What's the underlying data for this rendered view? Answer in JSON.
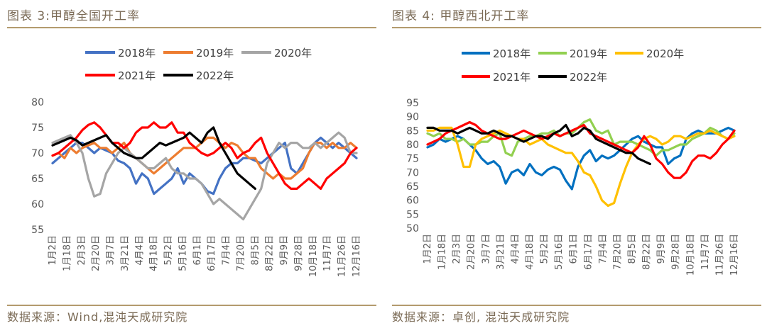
{
  "left_panel": {
    "title": "图表 3:甲醇全国开工率",
    "source": "数据来源：Wind,混沌天成研究院"
  },
  "right_panel": {
    "title": "图表 4: 甲醇西北开工率",
    "source": "数据来源：卓创, 混沌天成研究院"
  },
  "chart_data": [
    {
      "type": "line",
      "title": "",
      "xlabel": "",
      "ylabel": "",
      "ylim": [
        55,
        80
      ],
      "yticks": [
        55,
        60,
        65,
        70,
        75,
        80
      ],
      "grid": false,
      "legend_position": "top",
      "x_tick_labels": [
        "1月2日",
        "1月18日",
        "2月3日",
        "2月20日",
        "3月7日",
        "3月21日",
        "4月4日",
        "4月18日",
        "5月2日",
        "5月16日",
        "6月1日",
        "6月17日",
        "7月4日",
        "7月20日",
        "8月5日",
        "8月22日",
        "9月9日",
        "9月28日",
        "10月18日",
        "11月7日",
        "11月26日",
        "12月16日"
      ],
      "n_points": 52,
      "series": [
        {
          "name": "2018年",
          "color": "#4472c4",
          "values": [
            68,
            69,
            70,
            71,
            72,
            72,
            71,
            70,
            71,
            70.5,
            70,
            68.5,
            68,
            67,
            64,
            66,
            65,
            62,
            63,
            64,
            65,
            67,
            64,
            66,
            65,
            64,
            62.5,
            62,
            65,
            67,
            68,
            68,
            69,
            69,
            68.5,
            68,
            69,
            70,
            71,
            72,
            67,
            66,
            68,
            70,
            72,
            73,
            72,
            71,
            72,
            71,
            70,
            69
          ]
        },
        {
          "name": "2019年",
          "color": "#ed7d31",
          "values": [
            69.5,
            70,
            69,
            71,
            70,
            71,
            71.5,
            72,
            71,
            71,
            70,
            71,
            72,
            70,
            69,
            68,
            67,
            66,
            67,
            68,
            69,
            70,
            71,
            71,
            71,
            72,
            73,
            73,
            72,
            71,
            72,
            71.5,
            70,
            69,
            69,
            67,
            66,
            65,
            66,
            65,
            65,
            66,
            67,
            70,
            72,
            72,
            71,
            72,
            71,
            71,
            72,
            71
          ]
        },
        {
          "name": "2020年",
          "color": "#a5a5a5",
          "values": [
            72,
            72.5,
            73,
            73.5,
            72,
            70,
            65,
            61.5,
            62,
            66,
            68,
            70,
            71,
            70,
            69,
            68,
            67,
            67,
            68,
            69,
            67,
            66,
            66,
            65,
            65,
            64,
            62,
            60,
            61,
            60,
            59,
            58,
            57,
            59,
            61,
            63,
            68,
            70,
            72,
            71,
            72,
            72,
            71,
            71,
            72,
            71,
            72,
            73,
            74,
            73,
            70,
            70
          ]
        },
        {
          "name": "2021年",
          "color": "#ff0000",
          "values": [
            69.5,
            70,
            71,
            72,
            73,
            74.5,
            75.5,
            76,
            75,
            73.5,
            72,
            72,
            71,
            72,
            74,
            75,
            75,
            76,
            75,
            75,
            76,
            74,
            74,
            72,
            71,
            70,
            69.5,
            70,
            71,
            72,
            71,
            69,
            70,
            70.5,
            72,
            73,
            70,
            68,
            66,
            64,
            63,
            63,
            64,
            65,
            64,
            63,
            65,
            66,
            67,
            68,
            70,
            71
          ]
        },
        {
          "name": "2022年",
          "color": "#000000",
          "values": [
            71.5,
            72,
            72.5,
            73,
            72.5,
            71.5,
            72,
            72.5,
            73,
            73.5,
            72,
            71,
            70,
            69.5,
            69,
            69,
            70,
            71,
            72,
            71.5,
            72,
            72.5,
            73,
            74,
            73,
            72,
            74,
            75,
            72,
            70,
            68,
            66,
            65,
            64,
            63,
            null,
            null,
            null,
            null,
            null,
            null,
            null,
            null,
            null,
            null,
            null,
            null,
            null,
            null,
            null,
            null,
            null
          ]
        }
      ]
    },
    {
      "type": "line",
      "title": "",
      "xlabel": "",
      "ylabel": "",
      "ylim": [
        50,
        95
      ],
      "yticks": [
        50,
        55,
        60,
        65,
        70,
        75,
        80,
        85,
        90,
        95
      ],
      "grid": false,
      "legend_position": "top",
      "x_tick_labels": [
        "1月2日",
        "1月18日",
        "2月3日",
        "2月20日",
        "3月7日",
        "3月21日",
        "4月4日",
        "4月18日",
        "5月2日",
        "5月16日",
        "6月1日",
        "6月17日",
        "7月4日",
        "7月20日",
        "8月5日",
        "8月22日",
        "9月9日",
        "9月28日",
        "10月18日",
        "11月7日",
        "11月26日",
        "12月16日"
      ],
      "n_points": 52,
      "series": [
        {
          "name": "2018年",
          "color": "#0070c0",
          "values": [
            79,
            80,
            82,
            81,
            82,
            83,
            82,
            80,
            78,
            75,
            73,
            74,
            72,
            66,
            70,
            71,
            69,
            73,
            70,
            69,
            71,
            72,
            71,
            67,
            64,
            72,
            76,
            78,
            74,
            76,
            75,
            76,
            78,
            80,
            82,
            83,
            81,
            80,
            79,
            79,
            73,
            75,
            76,
            82,
            84,
            85,
            84,
            84,
            84,
            85,
            86,
            85
          ]
        },
        {
          "name": "2019年",
          "color": "#92d050",
          "values": [
            84,
            83,
            84,
            82,
            82,
            81,
            82,
            80,
            80,
            81,
            81,
            83,
            84,
            77,
            76,
            81,
            82,
            83,
            83,
            84,
            84,
            85,
            83,
            84,
            84,
            86,
            88,
            89,
            85,
            84,
            85,
            80,
            81,
            81,
            81,
            80,
            79,
            78,
            76,
            78,
            78,
            79,
            80,
            80,
            82,
            83,
            84,
            86,
            85,
            83,
            82,
            84
          ]
        },
        {
          "name": "2020年",
          "color": "#ffc000",
          "values": [
            85,
            85,
            86,
            86,
            86,
            80,
            72,
            72,
            80,
            82,
            83,
            84,
            85,
            84,
            83,
            82,
            82,
            80,
            81,
            82,
            80,
            79,
            78,
            77,
            77,
            74,
            70,
            69,
            65,
            60,
            58,
            59,
            66,
            72,
            77,
            80,
            82,
            83,
            82,
            80,
            81,
            83,
            83,
            82,
            83,
            84,
            84,
            85,
            84,
            83,
            82,
            83
          ]
        },
        {
          "name": "2021年",
          "color": "#ff0000",
          "values": [
            80,
            81,
            82,
            84,
            85,
            86,
            87,
            88,
            87,
            85,
            84,
            83,
            82,
            82,
            83,
            84,
            85,
            84,
            83,
            82,
            83,
            84,
            83,
            84,
            85,
            86,
            87,
            84,
            83,
            82,
            81,
            80,
            79,
            78,
            77,
            79,
            83,
            80,
            75,
            73,
            70,
            68,
            68,
            70,
            74,
            76,
            76,
            75,
            77,
            80,
            82,
            85
          ]
        },
        {
          "name": "2022年",
          "color": "#000000",
          "values": [
            86,
            86,
            85,
            85,
            85,
            84,
            85,
            86,
            85,
            84,
            84,
            85,
            84,
            83,
            83,
            82,
            81,
            82,
            83,
            83,
            82,
            84,
            85,
            87,
            83,
            84,
            86,
            85,
            82,
            81,
            80,
            79,
            78,
            77,
            77,
            75,
            74,
            73,
            null,
            null,
            null,
            null,
            null,
            null,
            null,
            null,
            null,
            null,
            null,
            null,
            null,
            null
          ]
        }
      ]
    }
  ]
}
